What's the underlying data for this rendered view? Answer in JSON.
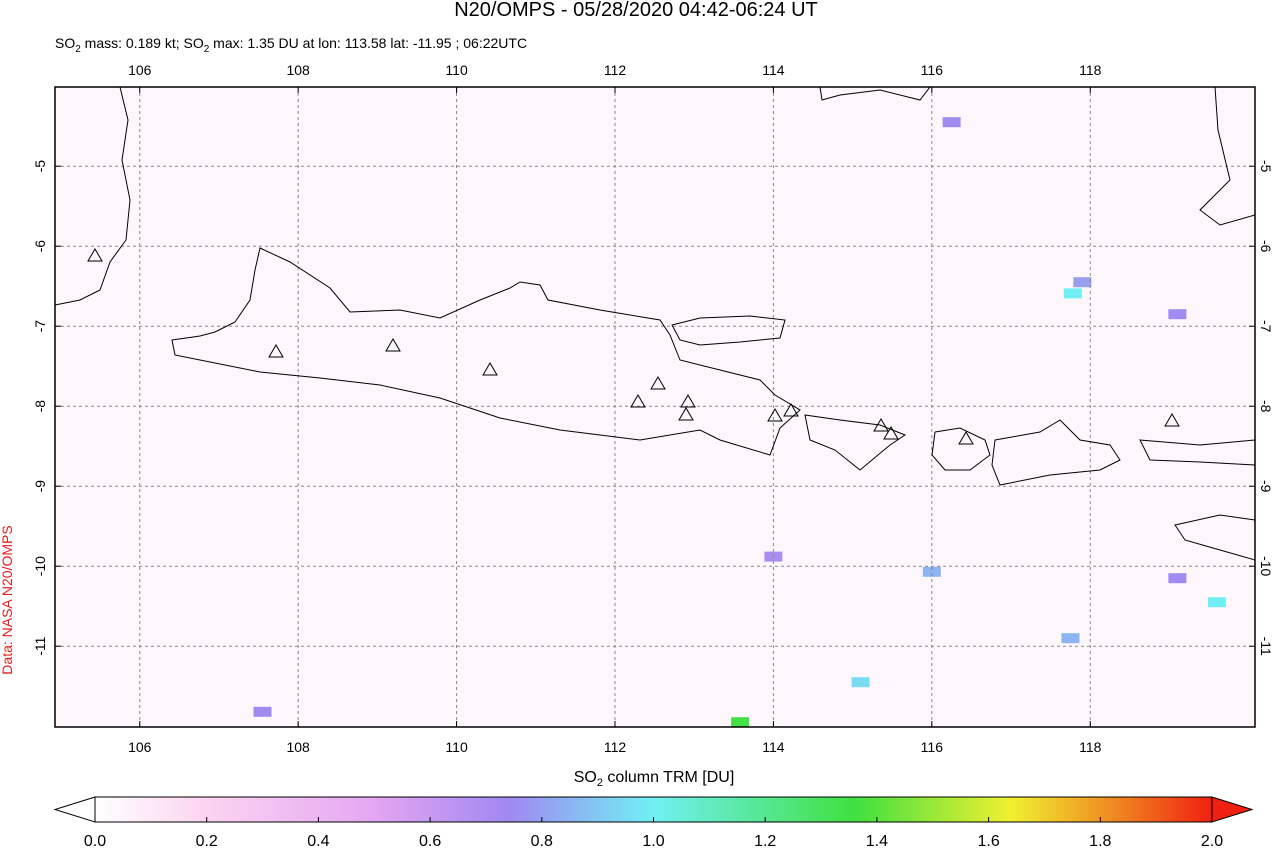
{
  "title": "N20/OMPS - 05/28/2020 04:42-06:24 UT",
  "subtitle": {
    "a": "SO",
    "b": "2",
    "c": " mass: 0.189 kt; SO",
    "d": "2",
    "e": " max: 1.35 DU at lon: 113.58 lat: -11.95 ; 06:22UTC"
  },
  "credit": "Data: NASA N20/OMPS",
  "map": {
    "lonlim": [
      104.93,
      120.08
    ],
    "latlim": [
      -12.01,
      -4.01
    ],
    "lonticks": [
      106,
      108,
      110,
      112,
      114,
      116,
      118
    ],
    "latticks": [
      -5,
      -6,
      -7,
      -8,
      -9,
      -10,
      -11
    ],
    "pixels": [
      {
        "lon": 113.58,
        "lat": -11.95,
        "value": 1.35
      },
      {
        "lon": 117.78,
        "lat": -6.59,
        "value": 1.0
      },
      {
        "lon": 119.6,
        "lat": -10.45,
        "value": 1.0
      },
      {
        "lon": 115.1,
        "lat": -11.45,
        "value": 0.95
      },
      {
        "lon": 116.0,
        "lat": -10.07,
        "value": 0.85
      },
      {
        "lon": 117.9,
        "lat": -6.45,
        "value": 0.8
      },
      {
        "lon": 116.25,
        "lat": -4.45,
        "value": 0.75
      },
      {
        "lon": 119.1,
        "lat": -6.85,
        "value": 0.75
      },
      {
        "lon": 119.1,
        "lat": -10.15,
        "value": 0.75
      },
      {
        "lon": 117.75,
        "lat": -10.9,
        "value": 0.85
      },
      {
        "lon": 114.0,
        "lat": -9.88,
        "value": 0.7
      },
      {
        "lon": 107.55,
        "lat": -11.82,
        "value": 0.75
      }
    ]
  },
  "colorbar": {
    "label": {
      "a": "SO",
      "b": "2",
      "c": " column TRM [DU]"
    },
    "lim": [
      0,
      2
    ],
    "ticks": [
      {
        "value": 0,
        "label": "0.0"
      },
      {
        "value": 0.2,
        "label": "0.2"
      },
      {
        "value": 0.4,
        "label": "0.4"
      },
      {
        "value": 0.6,
        "label": "0.6"
      },
      {
        "value": 0.8,
        "label": "0.8"
      },
      {
        "value": 1,
        "label": "1.0"
      },
      {
        "value": 1.2,
        "label": "1.2"
      },
      {
        "value": 1.4,
        "label": "1.4"
      },
      {
        "value": 1.6,
        "label": "1.6"
      },
      {
        "value": 1.8,
        "label": "1.8"
      },
      {
        "value": 2,
        "label": "2.0"
      }
    ]
  }
}
